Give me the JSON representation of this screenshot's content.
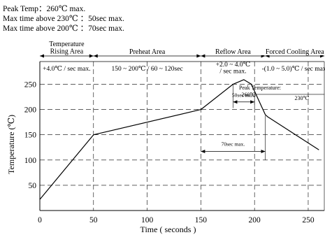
{
  "header": {
    "line1": "Peak Temp：260℃ max.",
    "line2": "Max time above 230℃  ：50sec max.",
    "line3": "Max time above 200℃  ：70sec max."
  },
  "chart_data": {
    "type": "line",
    "xlabel": "Time ( seconds )",
    "ylabel": "Temperature (℃)",
    "xlim": [
      0,
      265
    ],
    "ylim": [
      0,
      280
    ],
    "xticks": [
      0,
      50,
      100,
      150,
      200,
      250
    ],
    "yticks": [
      50,
      100,
      150,
      200,
      250
    ],
    "grid": true,
    "series": [
      {
        "x": [
          0,
          50,
          150,
          180,
          190,
          197,
          210,
          212,
          260
        ],
        "y": [
          22,
          150,
          200,
          250,
          259,
          250,
          190,
          186,
          120
        ]
      }
    ],
    "zones": [
      {
        "label_lines": [
          "Temperature",
          "Rising Area"
        ],
        "x0": 0,
        "x1": 50,
        "rate_lines": [
          "+4.0℃ / sec max."
        ]
      },
      {
        "label_lines": [
          "Preheat Area"
        ],
        "x0": 50,
        "x1": 150,
        "rate_lines": [
          "150 ~ 200℃ / 60 ~ 120sec"
        ]
      },
      {
        "label_lines": [
          "Reflow Area"
        ],
        "x0": 150,
        "x1": 210,
        "rate_lines": [
          "+2.0 ~ 4.0℃",
          "/ sec max."
        ]
      },
      {
        "label_lines": [
          "Forced Cooling Area"
        ],
        "x0": 210,
        "x1": 265,
        "rate_lines": [
          "-(1.0 ~ 5.0)℃ / sec max."
        ]
      }
    ],
    "annotations": {
      "peak_label": "Peak Temperature:",
      "peak_value": "260℃",
      "t230_label": "230℃",
      "t230_interval_label": "50sec max.",
      "t200_interval_label": "70sec max."
    }
  }
}
